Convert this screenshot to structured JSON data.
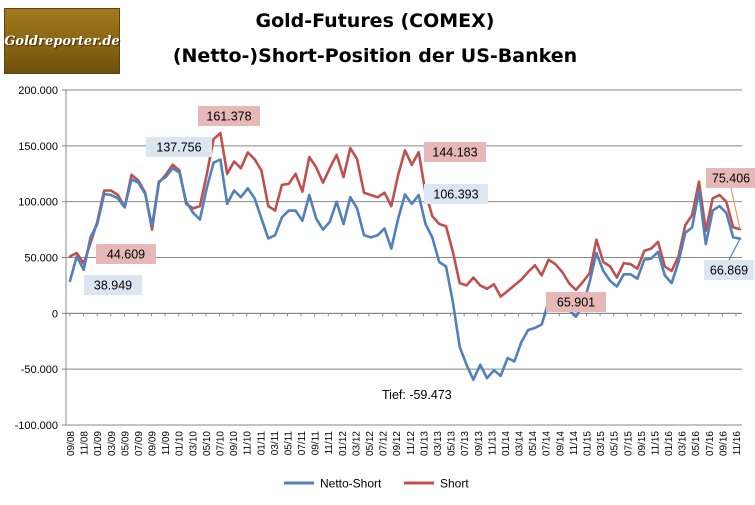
{
  "header": {
    "logo_text": "Goldreporter.de",
    "title_line1": "Gold-Futures (COMEX)",
    "title_line2": "(Netto-)Short-Position  der US-Banken"
  },
  "chart_data": {
    "type": "line",
    "title": "Gold-Futures (COMEX) (Netto-)Short-Position der US-Banken",
    "xlabel": "",
    "ylabel": "",
    "ylim": [
      -100000,
      200000
    ],
    "yticks": [
      "200.000",
      "150.000",
      "100.000",
      "50.000",
      "0",
      "-50.000",
      "-100.000"
    ],
    "ytick_values": [
      200000,
      150000,
      100000,
      50000,
      0,
      -50000,
      -100000
    ],
    "grid": true,
    "legend_position": "bottom",
    "x_labels": [
      "09/08",
      "11/08",
      "01/09",
      "03/09",
      "05/09",
      "07/09",
      "09/09",
      "11/09",
      "01/10",
      "03/10",
      "05/10",
      "07/10",
      "09/10",
      "11/10",
      "01/11",
      "03/11",
      "05/11",
      "07/11",
      "09/11",
      "11/11",
      "01/12",
      "03/12",
      "05/12",
      "07/12",
      "09/12",
      "11/12",
      "01/13",
      "03/13",
      "05/13",
      "07/13",
      "09/13",
      "11/13",
      "01/14",
      "03/14",
      "05/14",
      "07/14",
      "09/14",
      "11/14",
      "01/15",
      "03/15",
      "05/15",
      "07/15",
      "09/15",
      "11/15",
      "01/16",
      "03/16",
      "05/16",
      "07/16",
      "09/16",
      "11/16"
    ],
    "series": [
      {
        "name": "Netto-Short",
        "color": "#4f81bd",
        "values": [
          29000,
          51000,
          38949,
          68000,
          80000,
          107000,
          106000,
          103000,
          95000,
          120000,
          117000,
          107000,
          78000,
          118000,
          122000,
          130000,
          126000,
          100000,
          90000,
          84000,
          112000,
          135000,
          137756,
          98000,
          110000,
          104000,
          112000,
          103000,
          85000,
          67000,
          70000,
          86000,
          92000,
          92000,
          83000,
          106000,
          85000,
          75000,
          82000,
          100000,
          80000,
          104000,
          94000,
          70000,
          68000,
          70000,
          76000,
          58000,
          85000,
          106393,
          98000,
          106000,
          80000,
          68000,
          46000,
          42000,
          10000,
          -30000,
          -46000,
          -59473,
          -46000,
          -58000,
          -51000,
          -56000,
          -40000,
          -43000,
          -26000,
          -15000,
          -13000,
          -10000,
          11000,
          16000,
          10000,
          3000,
          -3000,
          7000,
          28000,
          54000,
          38000,
          29000,
          24000,
          35000,
          35000,
          31000,
          48000,
          49000,
          55000,
          34000,
          27000,
          46000,
          72000,
          77000,
          110000,
          62000,
          92000,
          96000,
          90000,
          68000,
          66869
        ],
        "labels": [
          {
            "point": 2,
            "text": "38.949"
          },
          {
            "point": 22,
            "text": "137.756"
          },
          {
            "point": 49,
            "text": "106.393"
          },
          {
            "point": 98,
            "text": "66.869"
          }
        ],
        "annotation": {
          "point": 59,
          "text": "Tief: -59.473"
        }
      },
      {
        "name": "Short",
        "color": "#c0504d",
        "values": [
          51000,
          54000,
          44609,
          63000,
          82000,
          110000,
          110000,
          106000,
          95000,
          124000,
          119000,
          108000,
          75000,
          117000,
          124000,
          133000,
          128000,
          98000,
          94000,
          96000,
          124000,
          156000,
          161378,
          125000,
          136000,
          130000,
          144000,
          138000,
          128000,
          96000,
          92000,
          115000,
          116000,
          125000,
          109000,
          140000,
          131000,
          117000,
          130000,
          142000,
          122000,
          148000,
          138000,
          108000,
          106000,
          104000,
          108000,
          96000,
          124000,
          146000,
          133000,
          144183,
          108000,
          87000,
          80000,
          78000,
          55000,
          27000,
          25000,
          32000,
          25000,
          22000,
          26000,
          15000,
          20000,
          25000,
          30000,
          37000,
          43000,
          34000,
          48000,
          44000,
          37000,
          27000,
          21000,
          28000,
          36000,
          65901,
          46000,
          42000,
          32000,
          45000,
          44000,
          40000,
          56000,
          58000,
          64000,
          42000,
          38000,
          51000,
          79000,
          88000,
          118000,
          74000,
          103000,
          106000,
          100000,
          77000,
          75406
        ],
        "labels": [
          {
            "point": 2,
            "text": "44.609"
          },
          {
            "point": 22,
            "text": "161.378"
          },
          {
            "point": 51,
            "text": "144.183"
          },
          {
            "point": 77,
            "text": "65.901"
          },
          {
            "point": 98,
            "text": "75.406"
          }
        ]
      }
    ]
  }
}
